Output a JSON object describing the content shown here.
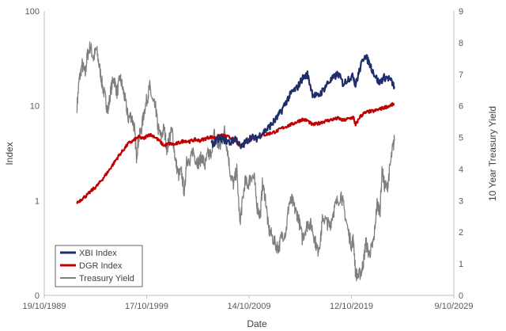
{
  "chart_data": {
    "type": "line",
    "xlabel": "Date",
    "ylabel": "Index",
    "y2label": "10 Year Treasury Yield",
    "x_ticks": [
      "19/10/1989",
      "17/10/1999",
      "14/10/2009",
      "12/10/2019",
      "9/10/2029"
    ],
    "x_tick_years": [
      1989.8,
      1999.8,
      2009.8,
      2019.8,
      2029.8
    ],
    "xlim": [
      1989.8,
      2029.8
    ],
    "ylim": [
      0.1,
      100
    ],
    "y_scale": "log",
    "y_ticks": [
      0.1,
      1,
      10,
      100
    ],
    "y_tick_labels": [
      "0",
      "1",
      "10",
      "100"
    ],
    "y2lim": [
      0,
      9
    ],
    "y2_ticks": [
      "0",
      "1",
      "2",
      "3",
      "4",
      "5",
      "6",
      "7",
      "8",
      "9"
    ],
    "grid": false,
    "legend_position": "bottom-left",
    "series": [
      {
        "name": "XBI Index",
        "axis": "left",
        "color": "#1f2d6b",
        "points": [
          [
            2006.1,
            3.9
          ],
          [
            2006.5,
            4.2
          ],
          [
            2007.0,
            4.6
          ],
          [
            2007.5,
            4.3
          ],
          [
            2008.0,
            4.1
          ],
          [
            2008.5,
            4.6
          ],
          [
            2009.0,
            3.6
          ],
          [
            2009.5,
            4.2
          ],
          [
            2010.0,
            4.7
          ],
          [
            2010.5,
            4.5
          ],
          [
            2011.0,
            5.1
          ],
          [
            2011.5,
            5.6
          ],
          [
            2012.0,
            6.4
          ],
          [
            2012.5,
            7.4
          ],
          [
            2013.0,
            9.0
          ],
          [
            2013.5,
            11.5
          ],
          [
            2014.0,
            14.0
          ],
          [
            2014.5,
            15.5
          ],
          [
            2015.0,
            19.5
          ],
          [
            2015.5,
            21.5
          ],
          [
            2016.0,
            13.5
          ],
          [
            2016.5,
            12.5
          ],
          [
            2017.0,
            14.5
          ],
          [
            2017.5,
            17.5
          ],
          [
            2018.0,
            19.5
          ],
          [
            2018.5,
            22.0
          ],
          [
            2019.0,
            17.0
          ],
          [
            2019.5,
            19.5
          ],
          [
            2020.0,
            20.5
          ],
          [
            2020.2,
            16.5
          ],
          [
            2020.6,
            24.0
          ],
          [
            2021.1,
            35.0
          ],
          [
            2021.5,
            29.0
          ],
          [
            2022.0,
            22.0
          ],
          [
            2022.5,
            17.5
          ],
          [
            2023.0,
            20.0
          ],
          [
            2023.5,
            19.5
          ],
          [
            2024.0,
            16.0
          ]
        ]
      },
      {
        "name": "DGR Index",
        "axis": "left",
        "color": "#c00000",
        "points": [
          [
            1993.0,
            0.95
          ],
          [
            1993.5,
            1.05
          ],
          [
            1994.0,
            1.15
          ],
          [
            1994.5,
            1.3
          ],
          [
            1995.0,
            1.45
          ],
          [
            1995.5,
            1.7
          ],
          [
            1996.0,
            2.0
          ],
          [
            1996.5,
            2.4
          ],
          [
            1997.0,
            2.9
          ],
          [
            1997.5,
            3.4
          ],
          [
            1998.0,
            4.0
          ],
          [
            1998.5,
            4.3
          ],
          [
            1999.0,
            4.7
          ],
          [
            1999.5,
            4.5
          ],
          [
            2000.0,
            5.0
          ],
          [
            2000.5,
            4.8
          ],
          [
            2001.0,
            4.3
          ],
          [
            2001.5,
            3.8
          ],
          [
            2002.0,
            4.0
          ],
          [
            2002.5,
            3.9
          ],
          [
            2003.0,
            4.1
          ],
          [
            2003.5,
            4.3
          ],
          [
            2004.0,
            4.2
          ],
          [
            2004.5,
            4.4
          ],
          [
            2005.0,
            4.3
          ],
          [
            2005.5,
            4.5
          ],
          [
            2006.0,
            4.7
          ],
          [
            2006.5,
            4.6
          ],
          [
            2007.0,
            4.9
          ],
          [
            2007.5,
            4.8
          ],
          [
            2008.0,
            4.6
          ],
          [
            2008.5,
            4.3
          ],
          [
            2009.0,
            3.7
          ],
          [
            2009.5,
            4.2
          ],
          [
            2010.0,
            4.5
          ],
          [
            2010.5,
            4.6
          ],
          [
            2011.0,
            4.9
          ],
          [
            2011.5,
            5.0
          ],
          [
            2012.0,
            5.2
          ],
          [
            2012.5,
            5.4
          ],
          [
            2013.0,
            5.8
          ],
          [
            2013.5,
            6.1
          ],
          [
            2014.0,
            6.4
          ],
          [
            2014.5,
            6.8
          ],
          [
            2015.0,
            7.2
          ],
          [
            2015.5,
            7.0
          ],
          [
            2016.0,
            6.3
          ],
          [
            2016.5,
            6.5
          ],
          [
            2017.0,
            6.8
          ],
          [
            2017.5,
            7.0
          ],
          [
            2018.0,
            7.2
          ],
          [
            2018.5,
            7.4
          ],
          [
            2019.0,
            7.0
          ],
          [
            2019.5,
            7.3
          ],
          [
            2020.0,
            7.6
          ],
          [
            2020.2,
            6.2
          ],
          [
            2020.6,
            7.6
          ],
          [
            2021.0,
            8.3
          ],
          [
            2021.5,
            8.7
          ],
          [
            2022.0,
            8.8
          ],
          [
            2022.5,
            9.2
          ],
          [
            2023.0,
            9.6
          ],
          [
            2023.5,
            10.0
          ],
          [
            2024.0,
            10.5
          ]
        ]
      },
      {
        "name": "Treasury Yield",
        "axis": "right",
        "color": "#7f7f7f",
        "points": [
          [
            1993.0,
            6.0
          ],
          [
            1993.2,
            6.8
          ],
          [
            1993.5,
            7.3
          ],
          [
            1993.8,
            7.0
          ],
          [
            1994.0,
            7.6
          ],
          [
            1994.3,
            7.9
          ],
          [
            1994.6,
            7.5
          ],
          [
            1994.9,
            7.8
          ],
          [
            1995.2,
            7.2
          ],
          [
            1995.5,
            6.6
          ],
          [
            1995.8,
            6.2
          ],
          [
            1996.0,
            5.8
          ],
          [
            1996.3,
            6.5
          ],
          [
            1996.6,
            6.9
          ],
          [
            1996.9,
            6.4
          ],
          [
            1997.2,
            6.9
          ],
          [
            1997.5,
            6.5
          ],
          [
            1997.8,
            6.0
          ],
          [
            1998.0,
            5.6
          ],
          [
            1998.3,
            5.7
          ],
          [
            1998.6,
            5.3
          ],
          [
            1998.8,
            4.4
          ],
          [
            1999.0,
            4.9
          ],
          [
            1999.3,
            5.3
          ],
          [
            1999.6,
            5.9
          ],
          [
            1999.9,
            6.3
          ],
          [
            2000.1,
            6.6
          ],
          [
            2000.4,
            6.1
          ],
          [
            2000.7,
            5.9
          ],
          [
            2000.9,
            5.3
          ],
          [
            2001.2,
            5.0
          ],
          [
            2001.5,
            5.3
          ],
          [
            2001.8,
            4.6
          ],
          [
            2002.0,
            5.0
          ],
          [
            2002.3,
            5.2
          ],
          [
            2002.6,
            4.3
          ],
          [
            2002.9,
            3.8
          ],
          [
            2003.2,
            3.9
          ],
          [
            2003.5,
            3.2
          ],
          [
            2003.7,
            4.4
          ],
          [
            2004.0,
            4.1
          ],
          [
            2004.3,
            4.6
          ],
          [
            2004.6,
            4.3
          ],
          [
            2004.9,
            4.2
          ],
          [
            2005.2,
            4.4
          ],
          [
            2005.5,
            4.1
          ],
          [
            2005.8,
            4.5
          ],
          [
            2006.0,
            4.4
          ],
          [
            2006.4,
            5.1
          ],
          [
            2006.7,
            4.8
          ],
          [
            2007.0,
            4.7
          ],
          [
            2007.4,
            5.2
          ],
          [
            2007.7,
            4.6
          ],
          [
            2008.0,
            3.8
          ],
          [
            2008.3,
            3.5
          ],
          [
            2008.6,
            4.0
          ],
          [
            2008.9,
            2.3
          ],
          [
            2009.1,
            2.8
          ],
          [
            2009.4,
            3.6
          ],
          [
            2009.7,
            3.5
          ],
          [
            2010.0,
            3.8
          ],
          [
            2010.3,
            3.7
          ],
          [
            2010.6,
            2.8
          ],
          [
            2010.9,
            2.5
          ],
          [
            2011.1,
            3.5
          ],
          [
            2011.4,
            3.1
          ],
          [
            2011.7,
            2.1
          ],
          [
            2012.0,
            1.9
          ],
          [
            2012.4,
            1.6
          ],
          [
            2012.7,
            1.5
          ],
          [
            2013.0,
            1.9
          ],
          [
            2013.4,
            2.0
          ],
          [
            2013.7,
            2.9
          ],
          [
            2014.0,
            3.0
          ],
          [
            2014.3,
            2.7
          ],
          [
            2014.6,
            2.5
          ],
          [
            2015.0,
            1.8
          ],
          [
            2015.3,
            2.1
          ],
          [
            2015.6,
            2.3
          ],
          [
            2015.9,
            2.2
          ],
          [
            2016.2,
            1.8
          ],
          [
            2016.5,
            1.4
          ],
          [
            2016.8,
            1.8
          ],
          [
            2017.0,
            2.5
          ],
          [
            2017.4,
            2.3
          ],
          [
            2017.7,
            2.2
          ],
          [
            2018.0,
            2.6
          ],
          [
            2018.3,
            2.9
          ],
          [
            2018.8,
            3.2
          ],
          [
            2019.1,
            2.7
          ],
          [
            2019.5,
            2.0
          ],
          [
            2019.8,
            1.6
          ],
          [
            2020.0,
            1.8
          ],
          [
            2020.2,
            0.7
          ],
          [
            2020.5,
            0.6
          ],
          [
            2020.8,
            0.8
          ],
          [
            2021.0,
            1.1
          ],
          [
            2021.2,
            1.7
          ],
          [
            2021.5,
            1.3
          ],
          [
            2021.8,
            1.5
          ],
          [
            2022.0,
            1.8
          ],
          [
            2022.3,
            2.9
          ],
          [
            2022.6,
            2.7
          ],
          [
            2022.8,
            4.0
          ],
          [
            2023.0,
            3.5
          ],
          [
            2023.3,
            3.4
          ],
          [
            2023.5,
            3.9
          ],
          [
            2023.8,
            4.6
          ],
          [
            2024.0,
            4.9
          ]
        ]
      }
    ]
  }
}
